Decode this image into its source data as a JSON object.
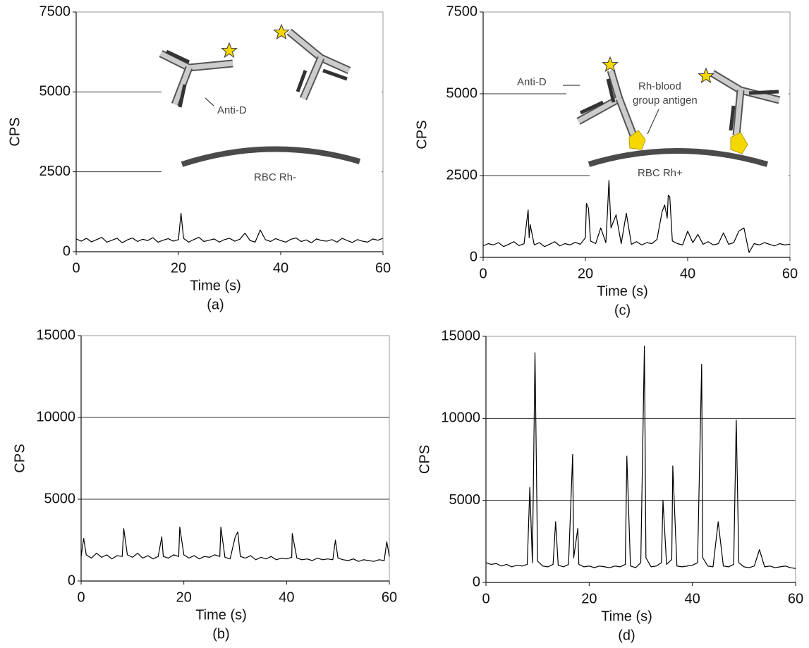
{
  "chart_data": [
    {
      "type": "line",
      "caption": "(a)",
      "xlabel": "Time (s)",
      "ylabel": "CPS",
      "xlim": [
        0,
        60
      ],
      "ylim": [
        0,
        7500
      ],
      "xticks": [
        0,
        20,
        40,
        60
      ],
      "yticks": [
        0,
        2500,
        5000,
        7500
      ],
      "grid": true,
      "annotations": [
        "Anti-D",
        "RBC Rh-"
      ],
      "x": [
        0,
        1,
        2,
        3,
        4,
        5,
        6,
        7,
        8,
        9,
        10,
        11,
        12,
        13,
        14,
        15,
        16,
        17,
        18,
        19,
        20,
        20.5,
        21,
        22,
        23,
        24,
        25,
        26,
        27,
        28,
        29,
        30,
        31,
        32,
        33,
        34,
        35,
        36,
        37,
        38,
        39,
        40,
        41,
        42,
        43,
        44,
        45,
        46,
        47,
        48,
        49,
        50,
        51,
        52,
        53,
        54,
        55,
        56,
        57,
        58,
        59,
        60
      ],
      "series": [
        {
          "color": "#000000",
          "values": [
            400,
            330,
            420,
            310,
            380,
            450,
            300,
            360,
            420,
            280,
            370,
            430,
            320,
            390,
            350,
            440,
            300,
            360,
            410,
            330,
            380,
            1200,
            420,
            300,
            380,
            450,
            320,
            360,
            400,
            300,
            380,
            420,
            330,
            390,
            580,
            350,
            300,
            680,
            380,
            320,
            410,
            350,
            300,
            390,
            430,
            320,
            370,
            280,
            400,
            350,
            330,
            380,
            300,
            420,
            350,
            290,
            380,
            330,
            300,
            400,
            360,
            420
          ]
        }
      ]
    },
    {
      "type": "line",
      "caption": "(b)",
      "xlabel": "Time (s)",
      "ylabel": "CPS",
      "xlim": [
        0,
        60
      ],
      "ylim": [
        0,
        15000
      ],
      "xticks": [
        0,
        20,
        40,
        60
      ],
      "yticks": [
        0,
        5000,
        10000,
        15000
      ],
      "grid": true,
      "annotations": [],
      "x": [
        0,
        0.5,
        1,
        2,
        3,
        4,
        5,
        6,
        7,
        8,
        8.3,
        9,
        10,
        11,
        12,
        13,
        14,
        15,
        15.7,
        16,
        17,
        18,
        19,
        19.2,
        20,
        21,
        22,
        23,
        24,
        25,
        26,
        27,
        27.2,
        28,
        29,
        30,
        30.5,
        31,
        32,
        33,
        34,
        35,
        36,
        37,
        38,
        39,
        40,
        41,
        41.1,
        42,
        43,
        44,
        45,
        46,
        47,
        48,
        49,
        49.5,
        50,
        51,
        52,
        53,
        54,
        55,
        56,
        57,
        58,
        59,
        59.5,
        60
      ],
      "series": [
        {
          "color": "#000000",
          "values": [
            1500,
            2600,
            1600,
            1400,
            1700,
            1450,
            1600,
            1350,
            1550,
            1500,
            3200,
            1600,
            1450,
            1700,
            1400,
            1550,
            1350,
            1500,
            2700,
            1500,
            1400,
            1600,
            1500,
            3300,
            1600,
            1400,
            1550,
            1350,
            1500,
            1450,
            1600,
            1500,
            3300,
            1450,
            1350,
            2700,
            3000,
            1500,
            1400,
            1550,
            1300,
            1450,
            1350,
            1500,
            1300,
            1400,
            1350,
            1450,
            2900,
            1400,
            1300,
            1350,
            1250,
            1400,
            1300,
            1350,
            1300,
            2500,
            1400,
            1300,
            1250,
            1350,
            1200,
            1300,
            1250,
            1200,
            1300,
            1250,
            2400,
            1500
          ]
        }
      ]
    },
    {
      "type": "line",
      "caption": "(c)",
      "xlabel": "Time (s)",
      "ylabel": "CPS",
      "xlim": [
        0,
        60
      ],
      "ylim": [
        0,
        7500
      ],
      "xticks": [
        0,
        20,
        40,
        60
      ],
      "yticks": [
        0,
        2500,
        5000,
        7500
      ],
      "grid": true,
      "annotations": [
        "Anti-D",
        "Rh-blood",
        "group antigen",
        "RBC Rh+"
      ],
      "x": [
        0,
        1,
        2,
        3,
        4,
        5,
        6,
        7,
        8,
        8.8,
        9,
        9.2,
        10,
        11,
        12,
        13,
        14,
        15,
        16,
        17,
        18,
        19,
        20,
        20.2,
        20.6,
        21,
        22,
        23,
        24,
        24.3,
        24.6,
        25,
        26,
        27,
        28,
        29,
        30,
        31,
        32,
        33,
        34,
        35,
        35.5,
        36,
        36.2,
        36.5,
        37,
        38,
        39,
        40,
        41,
        42,
        43,
        44,
        45,
        46,
        47,
        48,
        49,
        50,
        51,
        52,
        53,
        54,
        55,
        56,
        57,
        58,
        59,
        60
      ],
      "series": [
        {
          "color": "#000000",
          "values": [
            350,
            420,
            380,
            450,
            330,
            400,
            480,
            360,
            420,
            1450,
            600,
            1000,
            380,
            450,
            330,
            400,
            480,
            350,
            420,
            380,
            460,
            400,
            600,
            1650,
            1500,
            500,
            420,
            900,
            450,
            1350,
            2350,
            900,
            1300,
            420,
            1350,
            400,
            480,
            380,
            450,
            420,
            550,
            1400,
            1600,
            1200,
            1900,
            1850,
            500,
            420,
            380,
            800,
            450,
            700,
            400,
            480,
            380,
            420,
            750,
            400,
            450,
            800,
            900,
            150,
            420,
            380,
            450,
            400,
            350,
            420,
            380,
            400
          ]
        }
      ]
    },
    {
      "type": "line",
      "caption": "(d)",
      "xlabel": "Time (s)",
      "ylabel": "CPS",
      "xlim": [
        0,
        60
      ],
      "ylim": [
        0,
        15000
      ],
      "xticks": [
        0,
        20,
        40,
        60
      ],
      "yticks": [
        0,
        5000,
        10000,
        15000
      ],
      "grid": true,
      "annotations": [],
      "x": [
        0,
        1,
        2,
        3,
        4,
        5,
        6,
        7,
        8,
        8.5,
        9,
        9.5,
        10,
        11,
        12,
        13,
        13.5,
        14,
        15,
        16,
        16.8,
        17,
        17.8,
        18,
        19,
        20,
        21,
        22,
        23,
        24,
        25,
        26,
        27,
        27.3,
        28,
        29,
        30,
        30.7,
        31,
        32,
        33,
        34,
        34.3,
        35,
        36,
        36.2,
        37,
        38,
        39,
        40,
        41,
        41.8,
        42,
        43,
        44,
        45,
        46,
        47,
        48,
        48.5,
        49,
        50,
        51,
        52,
        53,
        54,
        55,
        56,
        57,
        58,
        59,
        60
      ],
      "series": [
        {
          "color": "#000000",
          "values": [
            1200,
            1100,
            1150,
            1000,
            1100,
            950,
            1050,
            1000,
            1100,
            5800,
            1200,
            14000,
            1300,
            1000,
            950,
            1100,
            3700,
            1050,
            950,
            1100,
            7800,
            1500,
            3300,
            1100,
            950,
            1000,
            900,
            1000,
            950,
            900,
            1000,
            950,
            1100,
            7700,
            1000,
            900,
            1200,
            14400,
            1500,
            950,
            1000,
            1200,
            5000,
            1100,
            1400,
            7100,
            1000,
            950,
            1000,
            1050,
            1200,
            13300,
            1500,
            1000,
            950,
            3700,
            1000,
            950,
            1100,
            9900,
            1200,
            950,
            900,
            1000,
            2000,
            950,
            1000,
            900,
            950,
            1000,
            900,
            850
          ]
        }
      ]
    }
  ]
}
